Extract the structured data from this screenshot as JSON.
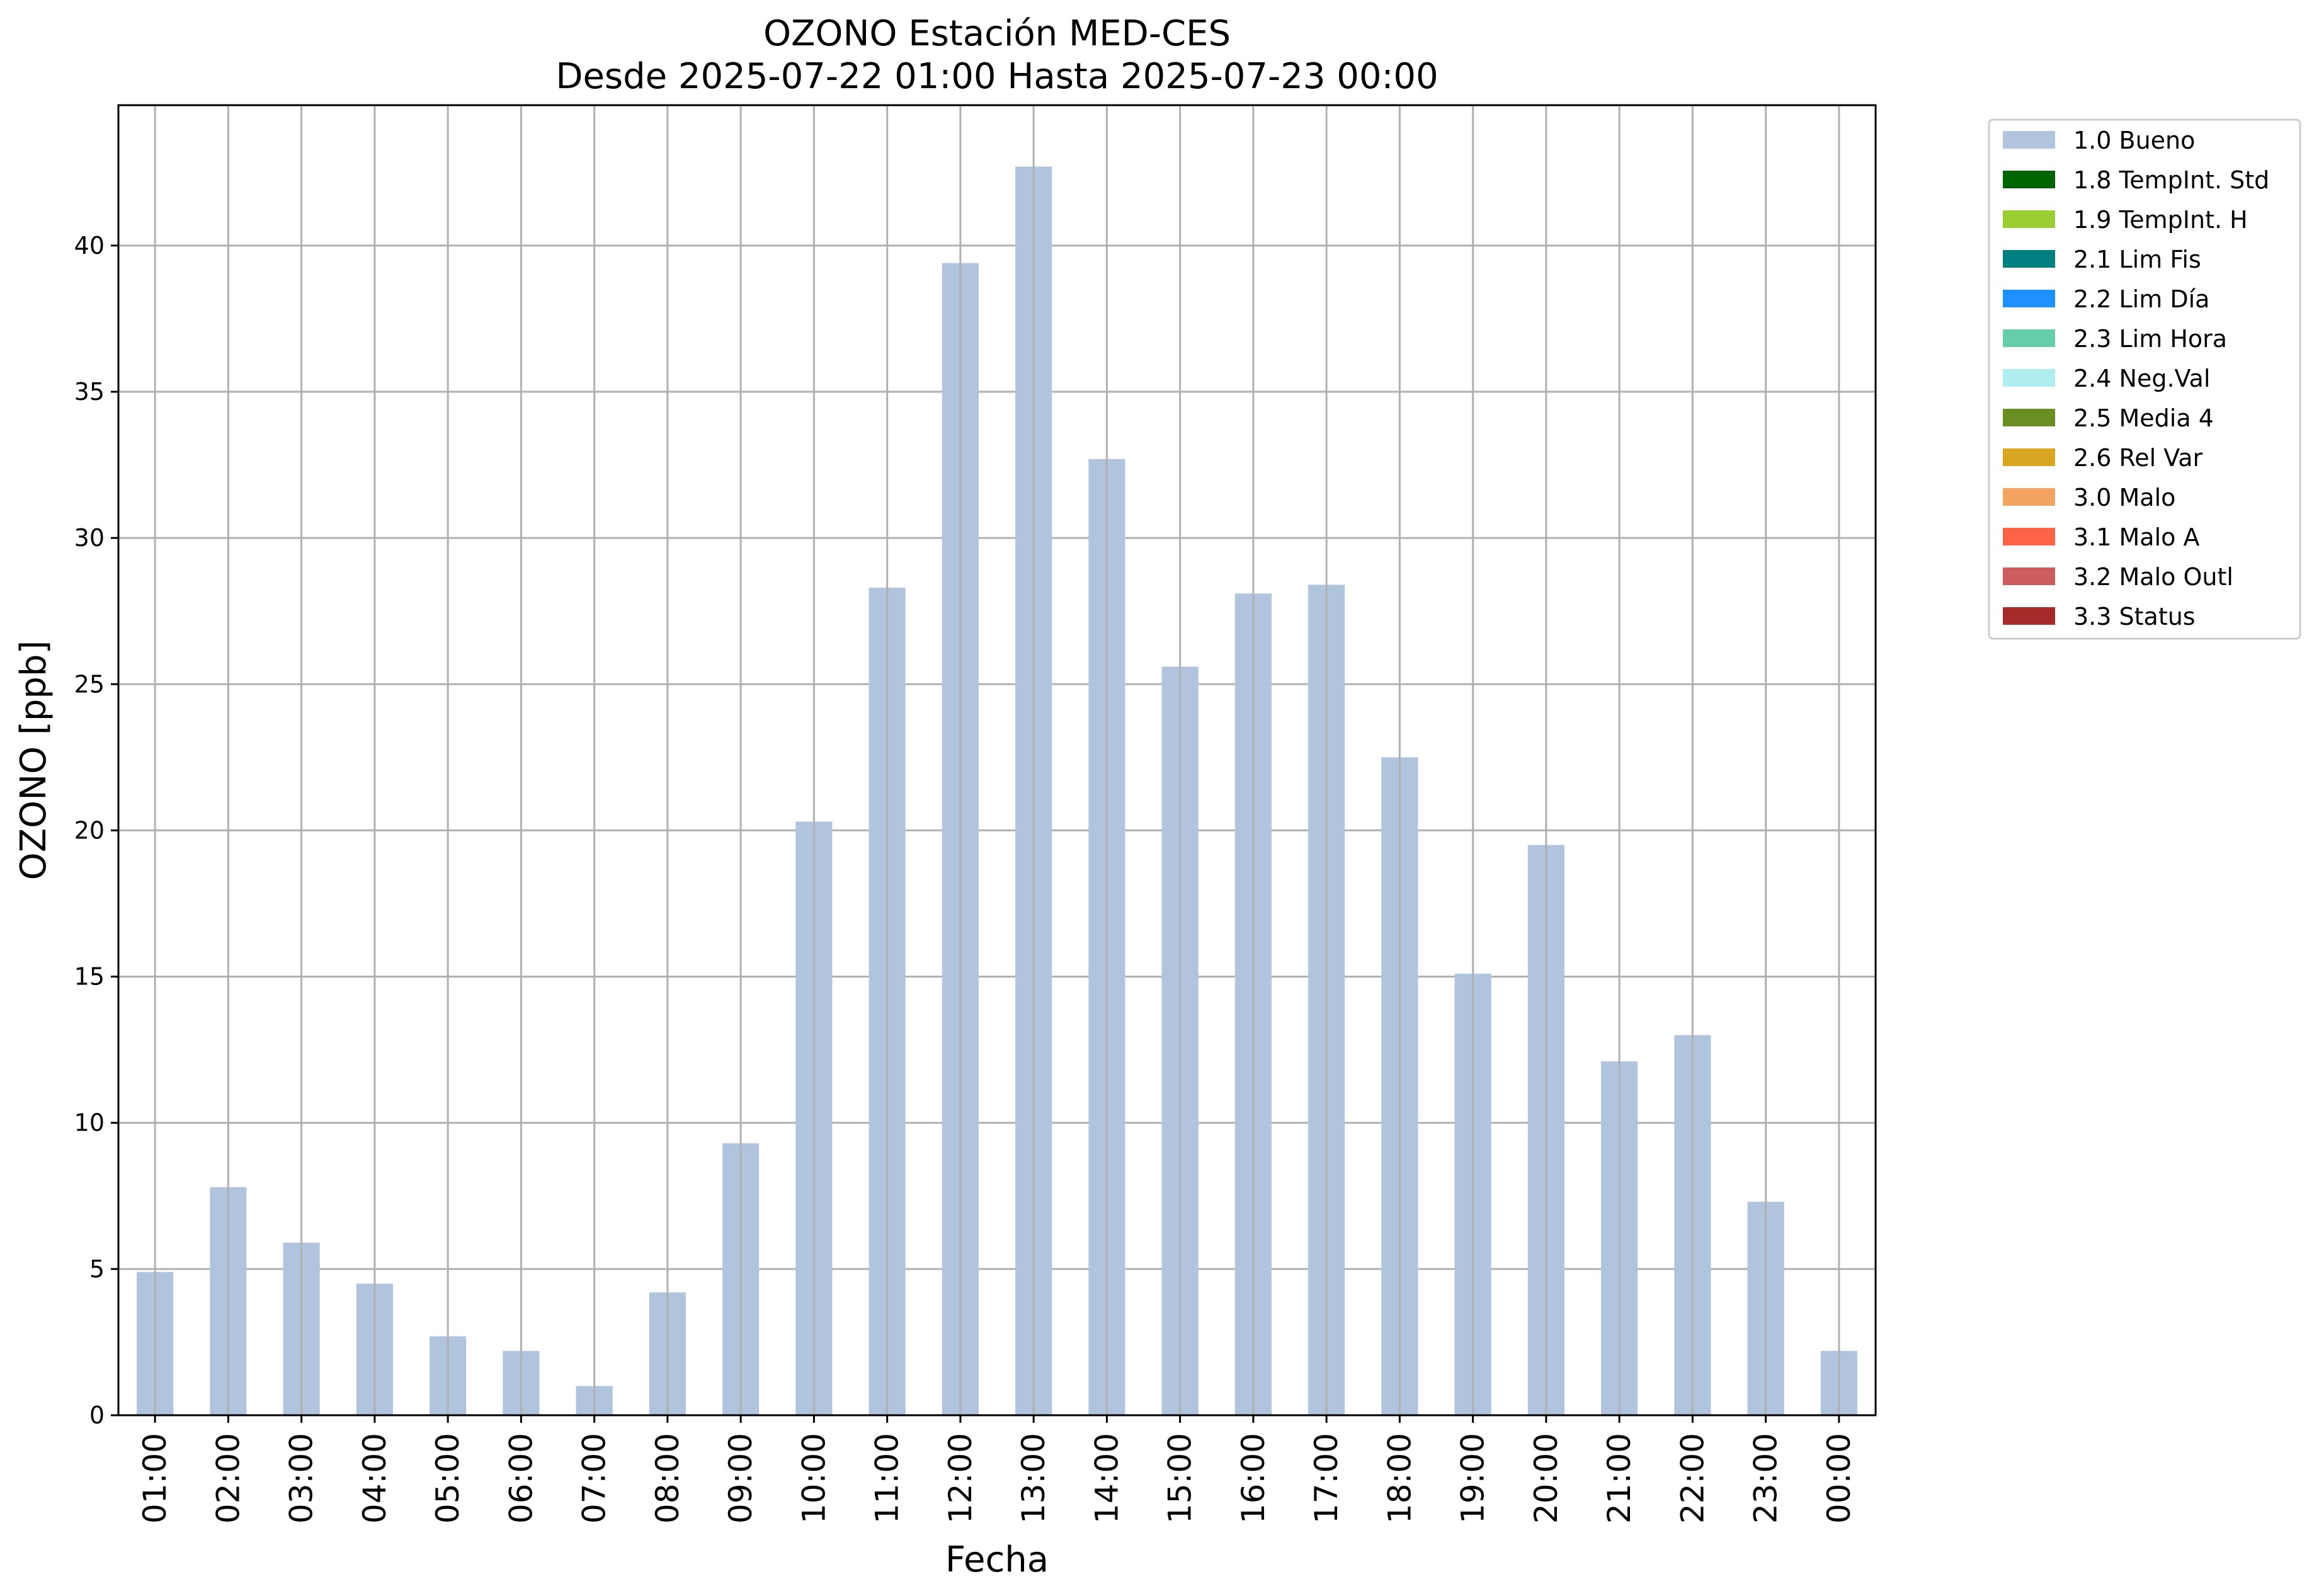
{
  "chart_data": {
    "type": "bar",
    "title": "OZONO Estación MED-CES",
    "subtitle": "Desde 2025-07-22 01:00 Hasta 2025-07-23 00:00",
    "xlabel": "Fecha",
    "ylabel": "OZONO [ppb]",
    "ylim": [
      0,
      44.8
    ],
    "yticks": [
      0,
      5,
      10,
      15,
      20,
      25,
      30,
      35,
      40
    ],
    "grid": true,
    "legend_position": "outside-top-right",
    "categories": [
      "01:00",
      "02:00",
      "03:00",
      "04:00",
      "05:00",
      "06:00",
      "07:00",
      "08:00",
      "09:00",
      "10:00",
      "11:00",
      "12:00",
      "13:00",
      "14:00",
      "15:00",
      "16:00",
      "17:00",
      "18:00",
      "19:00",
      "20:00",
      "21:00",
      "22:00",
      "23:00",
      "00:00"
    ],
    "series": [
      {
        "name": "1.0 Bueno",
        "color": "#b0c4de",
        "values": [
          4.9,
          7.8,
          5.9,
          4.5,
          2.7,
          2.2,
          1.0,
          4.2,
          9.3,
          20.3,
          28.3,
          39.4,
          42.7,
          32.7,
          25.6,
          28.1,
          28.4,
          22.5,
          15.1,
          19.5,
          12.1,
          13.0,
          7.3,
          2.2
        ]
      }
    ],
    "legend": [
      {
        "label": "1.0 Bueno",
        "color": "#b0c4de"
      },
      {
        "label": "1.8 TempInt. Std",
        "color": "#006400"
      },
      {
        "label": "1.9 TempInt. H",
        "color": "#9acd32"
      },
      {
        "label": "2.1 Lim Fis",
        "color": "#008080"
      },
      {
        "label": "2.2 Lim Día",
        "color": "#1e90ff"
      },
      {
        "label": "2.3 Lim Hora",
        "color": "#66cdaa"
      },
      {
        "label": "2.4 Neg.Val",
        "color": "#afeeee"
      },
      {
        "label": "2.5 Media 4",
        "color": "#6b8e23"
      },
      {
        "label": "2.6 Rel Var",
        "color": "#daa520"
      },
      {
        "label": "3.0 Malo",
        "color": "#f4a460"
      },
      {
        "label": "3.1 Malo A",
        "color": "#ff6347"
      },
      {
        "label": "3.2 Malo Outl",
        "color": "#cd5c5c"
      },
      {
        "label": "3.3 Status",
        "color": "#a52a2a"
      }
    ]
  }
}
